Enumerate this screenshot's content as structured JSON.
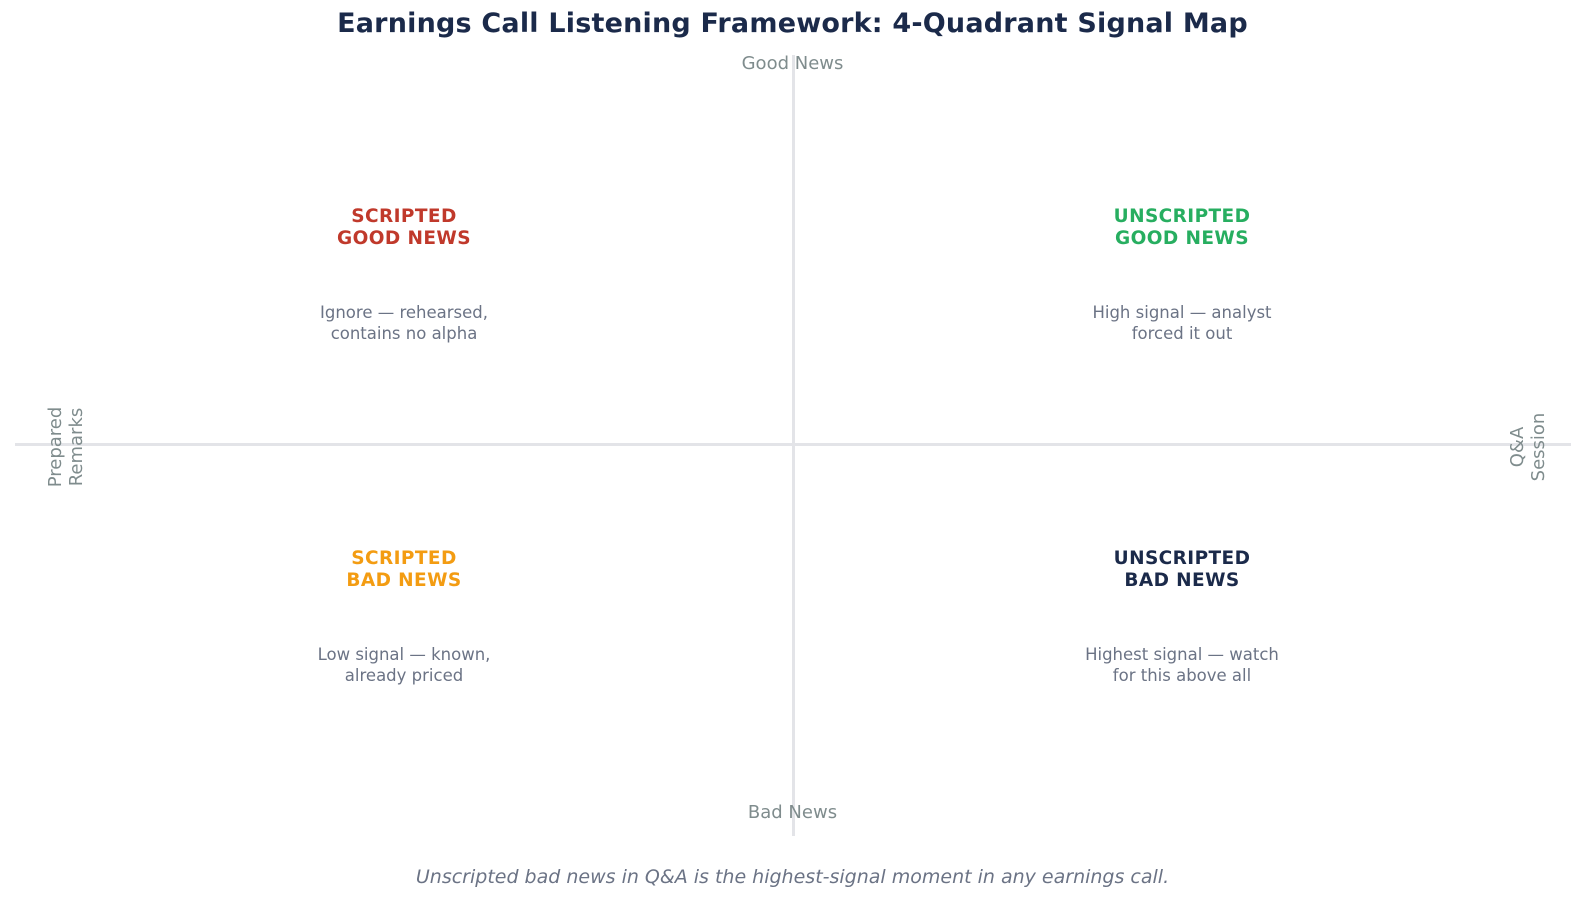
{
  "title": "Earnings Call Listening Framework: 4-Quadrant Signal Map",
  "axes": {
    "top": "Good News",
    "bottom": "Bad News",
    "left_line1": "Prepared",
    "left_line2": "Remarks",
    "right_line1": "Q&A",
    "right_line2": "Session"
  },
  "quadrants": {
    "top_left": {
      "heading_line1": "SCRIPTED",
      "heading_line2": "GOOD NEWS",
      "desc_line1": "Ignore — rehearsed,",
      "desc_line2": "contains no alpha",
      "color": "#c0392b"
    },
    "top_right": {
      "heading_line1": "UNSCRIPTED",
      "heading_line2": "GOOD NEWS",
      "desc_line1": "High signal — analyst",
      "desc_line2": "forced it out",
      "color": "#27ae60"
    },
    "bottom_left": {
      "heading_line1": "SCRIPTED",
      "heading_line2": "BAD NEWS",
      "desc_line1": "Low signal — known,",
      "desc_line2": "already priced",
      "color": "#f39c12"
    },
    "bottom_right": {
      "heading_line1": "UNSCRIPTED",
      "heading_line2": "BAD NEWS",
      "desc_line1": "Highest signal — watch",
      "desc_line2": "for this above all",
      "color": "#1b2a4a"
    }
  },
  "footer": "Unscripted bad news in Q&A is the highest-signal moment in any earnings call.",
  "colors": {
    "title": "#1b2a4a",
    "axis_line": "#e3e4e8",
    "axis_label": "#7f8c8d",
    "desc_text": "#6b7385"
  }
}
